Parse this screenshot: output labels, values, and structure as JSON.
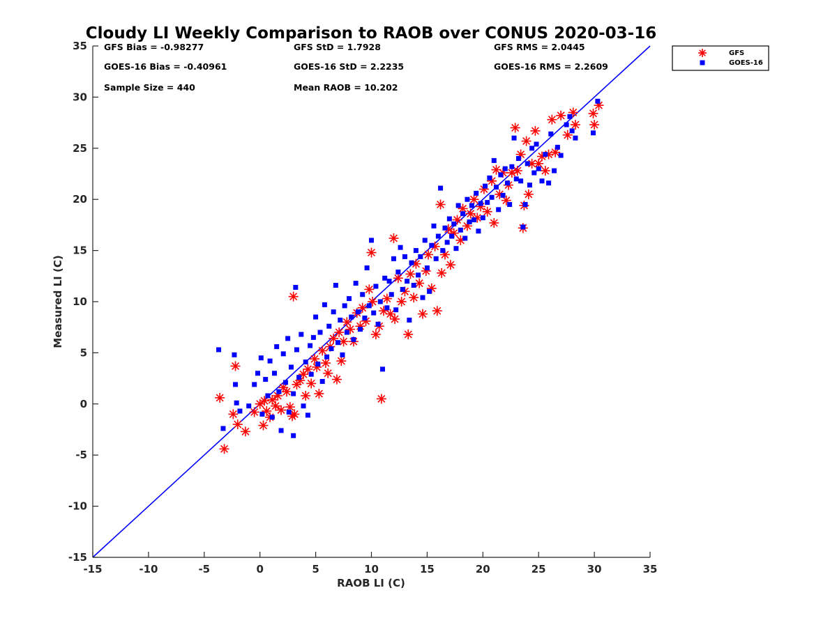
{
  "chart_data": {
    "type": "scatter",
    "title": "Cloudy LI Weekly Comparison to RAOB over CONUS 2020-03-16",
    "xlabel": "RAOB LI (C)",
    "ylabel": "Measured LI (C)",
    "xlim": [
      -15,
      35
    ],
    "ylim": [
      -15,
      35
    ],
    "xticks": [
      -15,
      -10,
      -5,
      0,
      5,
      10,
      15,
      20,
      25,
      30,
      35
    ],
    "yticks": [
      -15,
      -10,
      -5,
      0,
      5,
      10,
      15,
      20,
      25,
      30,
      35
    ],
    "grid": false,
    "legend_position": "top-right outside",
    "reference_line": {
      "from": [
        -15,
        -15
      ],
      "to": [
        35,
        35
      ],
      "color": "#0000ff"
    },
    "stats": {
      "gfs_bias": "GFS Bias = -0.98277",
      "goes_bias": "GOES-16 Bias = -0.40961",
      "sample_size": "Sample Size = 440",
      "gfs_std": "GFS StD = 1.7928",
      "goes_std": "GOES-16 StD = 2.2235",
      "mean_raob": "Mean RAOB = 10.202",
      "gfs_rms": "GFS RMS = 2.0445",
      "goes_rms": "GOES-16 RMS = 2.2609"
    },
    "series": [
      {
        "name": "GFS",
        "marker": "asterisk",
        "color": "#ff0000",
        "points": [
          [
            -3.6,
            0.6
          ],
          [
            -3.2,
            -4.4
          ],
          [
            -2.4,
            -1.0
          ],
          [
            -2.2,
            3.7
          ],
          [
            -2.0,
            -2.0
          ],
          [
            -1.3,
            -2.7
          ],
          [
            -0.5,
            -0.8
          ],
          [
            0.0,
            0.0
          ],
          [
            0.3,
            -2.1
          ],
          [
            0.4,
            0.3
          ],
          [
            0.6,
            -0.7
          ],
          [
            0.9,
            -1.3
          ],
          [
            1.1,
            0.4
          ],
          [
            1.4,
            -0.2
          ],
          [
            1.6,
            0.8
          ],
          [
            1.9,
            -0.6
          ],
          [
            2.1,
            1.6
          ],
          [
            2.4,
            1.2
          ],
          [
            2.7,
            -0.3
          ],
          [
            2.9,
            -1.2
          ],
          [
            3.1,
            -1.0
          ],
          [
            3.0,
            10.5
          ],
          [
            3.3,
            1.9
          ],
          [
            3.6,
            2.3
          ],
          [
            3.9,
            2.9
          ],
          [
            4.1,
            0.8
          ],
          [
            4.3,
            3.4
          ],
          [
            4.6,
            2.0
          ],
          [
            4.9,
            4.4
          ],
          [
            5.1,
            3.6
          ],
          [
            5.3,
            1.0
          ],
          [
            5.6,
            5.2
          ],
          [
            5.9,
            4.0
          ],
          [
            6.1,
            3.0
          ],
          [
            6.3,
            5.6
          ],
          [
            6.6,
            6.4
          ],
          [
            6.9,
            2.4
          ],
          [
            7.1,
            7.0
          ],
          [
            7.3,
            4.2
          ],
          [
            7.5,
            6.1
          ],
          [
            7.8,
            8.0
          ],
          [
            8.1,
            7.3
          ],
          [
            8.4,
            6.1
          ],
          [
            8.7,
            8.9
          ],
          [
            9.0,
            7.6
          ],
          [
            9.2,
            9.4
          ],
          [
            9.5,
            8.1
          ],
          [
            9.8,
            11.2
          ],
          [
            10.0,
            14.8
          ],
          [
            10.1,
            10.0
          ],
          [
            10.4,
            6.8
          ],
          [
            10.7,
            7.6
          ],
          [
            10.9,
            0.5
          ],
          [
            11.1,
            9.1
          ],
          [
            11.4,
            10.3
          ],
          [
            11.7,
            8.8
          ],
          [
            12.0,
            16.2
          ],
          [
            12.1,
            8.3
          ],
          [
            12.4,
            12.3
          ],
          [
            12.7,
            10.0
          ],
          [
            13.0,
            11.0
          ],
          [
            13.3,
            6.8
          ],
          [
            13.5,
            12.7
          ],
          [
            13.8,
            10.4
          ],
          [
            14.0,
            13.7
          ],
          [
            14.3,
            11.8
          ],
          [
            14.6,
            8.8
          ],
          [
            14.9,
            13.0
          ],
          [
            15.1,
            14.6
          ],
          [
            15.4,
            11.3
          ],
          [
            15.7,
            15.4
          ],
          [
            15.9,
            9.1
          ],
          [
            16.2,
            19.5
          ],
          [
            16.3,
            12.8
          ],
          [
            16.6,
            14.6
          ],
          [
            16.9,
            17.1
          ],
          [
            17.1,
            13.6
          ],
          [
            17.4,
            16.7
          ],
          [
            17.7,
            18.0
          ],
          [
            18.0,
            16.0
          ],
          [
            18.2,
            19.1
          ],
          [
            18.6,
            17.4
          ],
          [
            18.9,
            18.6
          ],
          [
            19.2,
            20.0
          ],
          [
            19.5,
            18.2
          ],
          [
            19.8,
            19.3
          ],
          [
            20.1,
            21.0
          ],
          [
            20.4,
            18.8
          ],
          [
            20.8,
            21.8
          ],
          [
            21.0,
            17.7
          ],
          [
            21.2,
            22.9
          ],
          [
            21.5,
            20.5
          ],
          [
            21.8,
            22.6
          ],
          [
            22.1,
            19.9
          ],
          [
            22.3,
            21.4
          ],
          [
            22.6,
            22.6
          ],
          [
            22.9,
            27.0
          ],
          [
            23.1,
            22.8
          ],
          [
            23.4,
            24.4
          ],
          [
            23.6,
            17.2
          ],
          [
            23.7,
            19.4
          ],
          [
            23.9,
            25.7
          ],
          [
            24.1,
            20.5
          ],
          [
            24.4,
            23.5
          ],
          [
            24.7,
            26.7
          ],
          [
            25.0,
            23.5
          ],
          [
            25.3,
            24.2
          ],
          [
            25.6,
            22.8
          ],
          [
            25.9,
            24.4
          ],
          [
            26.2,
            27.8
          ],
          [
            26.5,
            24.6
          ],
          [
            27.0,
            28.2
          ],
          [
            27.6,
            26.3
          ],
          [
            28.1,
            28.5
          ],
          [
            28.3,
            27.3
          ],
          [
            29.9,
            28.4
          ],
          [
            30.0,
            27.3
          ],
          [
            30.4,
            29.2
          ]
        ]
      },
      {
        "name": "GOES-16",
        "marker": "square",
        "color": "#0000ff",
        "points": [
          [
            -3.7,
            5.3
          ],
          [
            -3.3,
            -2.4
          ],
          [
            -2.3,
            4.8
          ],
          [
            -2.2,
            1.9
          ],
          [
            -2.1,
            0.1
          ],
          [
            -1.8,
            -0.7
          ],
          [
            -1.0,
            -0.2
          ],
          [
            -0.5,
            1.9
          ],
          [
            -0.2,
            3.0
          ],
          [
            0.1,
            4.5
          ],
          [
            0.2,
            -1.0
          ],
          [
            0.5,
            2.4
          ],
          [
            0.7,
            0.8
          ],
          [
            0.9,
            4.2
          ],
          [
            1.1,
            -1.3
          ],
          [
            1.3,
            3.0
          ],
          [
            1.5,
            5.6
          ],
          [
            1.7,
            1.2
          ],
          [
            1.9,
            -2.6
          ],
          [
            2.1,
            4.9
          ],
          [
            2.3,
            2.1
          ],
          [
            2.5,
            6.4
          ],
          [
            2.6,
            -0.8
          ],
          [
            2.8,
            3.6
          ],
          [
            3.0,
            1.0
          ],
          [
            3.0,
            -3.1
          ],
          [
            3.2,
            11.4
          ],
          [
            3.3,
            5.3
          ],
          [
            3.5,
            2.6
          ],
          [
            3.7,
            6.8
          ],
          [
            3.9,
            -0.2
          ],
          [
            4.1,
            4.1
          ],
          [
            4.3,
            -1.1
          ],
          [
            4.5,
            5.7
          ],
          [
            4.6,
            2.9
          ],
          [
            4.8,
            6.5
          ],
          [
            5.0,
            8.5
          ],
          [
            5.2,
            3.9
          ],
          [
            5.4,
            7.0
          ],
          [
            5.6,
            2.2
          ],
          [
            5.8,
            9.7
          ],
          [
            6.0,
            4.6
          ],
          [
            6.2,
            7.6
          ],
          [
            6.4,
            5.4
          ],
          [
            6.6,
            9.0
          ],
          [
            6.8,
            11.6
          ],
          [
            7.0,
            6.0
          ],
          [
            7.2,
            8.2
          ],
          [
            7.4,
            4.8
          ],
          [
            7.6,
            9.6
          ],
          [
            7.8,
            7.0
          ],
          [
            8.0,
            10.3
          ],
          [
            8.2,
            8.5
          ],
          [
            8.4,
            6.3
          ],
          [
            8.6,
            11.8
          ],
          [
            8.8,
            9.0
          ],
          [
            9.0,
            7.3
          ],
          [
            9.2,
            10.7
          ],
          [
            9.4,
            8.4
          ],
          [
            9.6,
            13.3
          ],
          [
            9.8,
            9.6
          ],
          [
            10.0,
            16.0
          ],
          [
            10.2,
            8.9
          ],
          [
            10.4,
            11.5
          ],
          [
            10.6,
            7.8
          ],
          [
            10.8,
            10.0
          ],
          [
            11.0,
            3.4
          ],
          [
            11.2,
            12.3
          ],
          [
            11.4,
            9.4
          ],
          [
            11.6,
            12.0
          ],
          [
            11.8,
            10.7
          ],
          [
            12.0,
            14.2
          ],
          [
            12.2,
            9.2
          ],
          [
            12.4,
            12.9
          ],
          [
            12.6,
            15.3
          ],
          [
            12.8,
            11.2
          ],
          [
            13.0,
            14.4
          ],
          [
            13.2,
            12.0
          ],
          [
            13.4,
            8.2
          ],
          [
            13.6,
            13.8
          ],
          [
            13.8,
            11.6
          ],
          [
            14.0,
            15.0
          ],
          [
            14.2,
            12.6
          ],
          [
            14.4,
            14.4
          ],
          [
            14.6,
            10.4
          ],
          [
            14.8,
            16.0
          ],
          [
            15.0,
            13.3
          ],
          [
            15.2,
            11.0
          ],
          [
            15.4,
            15.5
          ],
          [
            15.6,
            17.4
          ],
          [
            15.8,
            14.2
          ],
          [
            16.0,
            16.4
          ],
          [
            16.2,
            21.1
          ],
          [
            16.4,
            15.0
          ],
          [
            16.6,
            17.2
          ],
          [
            16.8,
            15.8
          ],
          [
            17.0,
            18.1
          ],
          [
            17.2,
            16.4
          ],
          [
            17.4,
            17.6
          ],
          [
            17.6,
            15.2
          ],
          [
            17.8,
            19.4
          ],
          [
            18.0,
            17.0
          ],
          [
            18.2,
            18.6
          ],
          [
            18.4,
            16.2
          ],
          [
            18.6,
            20.0
          ],
          [
            18.8,
            17.8
          ],
          [
            19.0,
            19.4
          ],
          [
            19.2,
            18.0
          ],
          [
            19.4,
            20.6
          ],
          [
            19.6,
            16.9
          ],
          [
            19.8,
            19.6
          ],
          [
            20.0,
            18.2
          ],
          [
            20.2,
            21.3
          ],
          [
            20.4,
            19.7
          ],
          [
            20.6,
            22.1
          ],
          [
            20.8,
            20.2
          ],
          [
            21.0,
            23.8
          ],
          [
            21.2,
            21.2
          ],
          [
            21.4,
            19.0
          ],
          [
            21.6,
            22.4
          ],
          [
            21.8,
            20.4
          ],
          [
            22.0,
            23.0
          ],
          [
            22.2,
            21.6
          ],
          [
            22.4,
            19.5
          ],
          [
            22.6,
            23.2
          ],
          [
            22.8,
            26.0
          ],
          [
            23.0,
            22.0
          ],
          [
            23.2,
            24.0
          ],
          [
            23.4,
            21.8
          ],
          [
            23.6,
            17.3
          ],
          [
            23.8,
            19.5
          ],
          [
            24.0,
            23.5
          ],
          [
            24.2,
            21.4
          ],
          [
            24.4,
            25.0
          ],
          [
            24.6,
            22.6
          ],
          [
            24.8,
            25.4
          ],
          [
            25.0,
            23.0
          ],
          [
            25.3,
            21.8
          ],
          [
            25.6,
            24.4
          ],
          [
            25.9,
            21.6
          ],
          [
            26.1,
            26.4
          ],
          [
            26.4,
            22.8
          ],
          [
            26.7,
            25.1
          ],
          [
            27.0,
            24.3
          ],
          [
            27.5,
            27.3
          ],
          [
            27.8,
            28.1
          ],
          [
            28.0,
            26.7
          ],
          [
            28.3,
            26.0
          ],
          [
            29.9,
            26.5
          ],
          [
            30.3,
            29.6
          ]
        ]
      }
    ]
  }
}
